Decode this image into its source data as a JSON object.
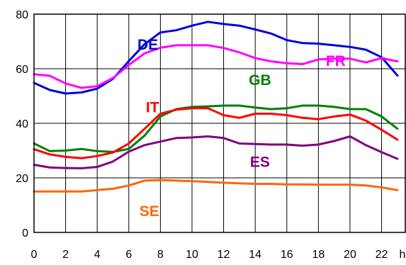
{
  "chart_data": {
    "type": "line",
    "title": "",
    "xlabel": "",
    "ylabel": "",
    "x_unit_label": "h",
    "xlim": [
      0,
      23.5
    ],
    "ylim": [
      0,
      80
    ],
    "x_ticks": [
      0,
      2,
      4,
      6,
      8,
      10,
      12,
      14,
      16,
      18,
      20,
      22
    ],
    "y_ticks": [
      0,
      20,
      40,
      60,
      80
    ],
    "grid": true,
    "legend": "none",
    "x": [
      0,
      1,
      2,
      3,
      4,
      5,
      6,
      7,
      8,
      9,
      10,
      11,
      12,
      13,
      14,
      15,
      16,
      17,
      18,
      19,
      20,
      21,
      22,
      23
    ],
    "series": [
      {
        "name": "DE",
        "color": "#0000dd",
        "label_at": [
          7.2,
          67
        ],
        "values": [
          54.8,
          52.2,
          50.9,
          51.3,
          52.7,
          56.3,
          62.8,
          69.0,
          73.3,
          74.1,
          75.8,
          77.2,
          76.4,
          75.8,
          74.4,
          72.9,
          70.5,
          69.4,
          69.2,
          68.6,
          68.0,
          67.0,
          64.2,
          57.5
        ]
      },
      {
        "name": "FR",
        "color": "#ff00ff",
        "label_at": [
          19.1,
          61
        ],
        "values": [
          58.0,
          57.4,
          54.6,
          53.0,
          53.6,
          56.6,
          61.4,
          65.6,
          67.7,
          68.6,
          68.6,
          68.6,
          67.6,
          66.0,
          63.9,
          62.7,
          62.0,
          61.7,
          63.4,
          63.7,
          63.7,
          62.3,
          63.9,
          62.7
        ]
      },
      {
        "name": "GB",
        "color": "#008000",
        "label_at": [
          14.3,
          54
        ],
        "values": [
          32.6,
          29.8,
          30.0,
          30.6,
          29.8,
          29.5,
          30.6,
          35.5,
          42.5,
          45.2,
          46.0,
          46.2,
          46.5,
          46.5,
          45.8,
          45.2,
          45.5,
          46.5,
          46.5,
          46.0,
          45.2,
          45.2,
          42.5,
          38.0
        ]
      },
      {
        "name": "IT",
        "color": "#ff0000",
        "label_at": [
          7.5,
          44
        ],
        "values": [
          30.5,
          28.6,
          27.7,
          27.2,
          28.0,
          29.3,
          32.6,
          38.0,
          43.5,
          45.0,
          45.5,
          45.5,
          43.0,
          42.0,
          43.5,
          43.5,
          43.0,
          42.0,
          41.5,
          42.5,
          43.2,
          41.0,
          37.6,
          34.0
        ]
      },
      {
        "name": "ES",
        "color": "#800080",
        "label_at": [
          14.3,
          24
        ],
        "values": [
          24.8,
          23.8,
          23.6,
          23.5,
          24.0,
          26.0,
          29.6,
          32.0,
          33.3,
          34.6,
          34.8,
          35.2,
          34.6,
          32.6,
          32.4,
          32.2,
          32.2,
          31.8,
          32.2,
          33.5,
          35.2,
          32.0,
          29.4,
          27.0
        ]
      },
      {
        "name": "SE",
        "color": "#ff6600",
        "label_at": [
          7.3,
          6
        ],
        "values": [
          15.0,
          15.0,
          15.0,
          15.0,
          15.5,
          16.0,
          17.2,
          19.0,
          19.2,
          19.0,
          18.8,
          18.5,
          18.2,
          18.0,
          17.8,
          17.8,
          17.6,
          17.6,
          17.5,
          17.5,
          17.5,
          17.2,
          16.5,
          15.5
        ]
      }
    ]
  }
}
